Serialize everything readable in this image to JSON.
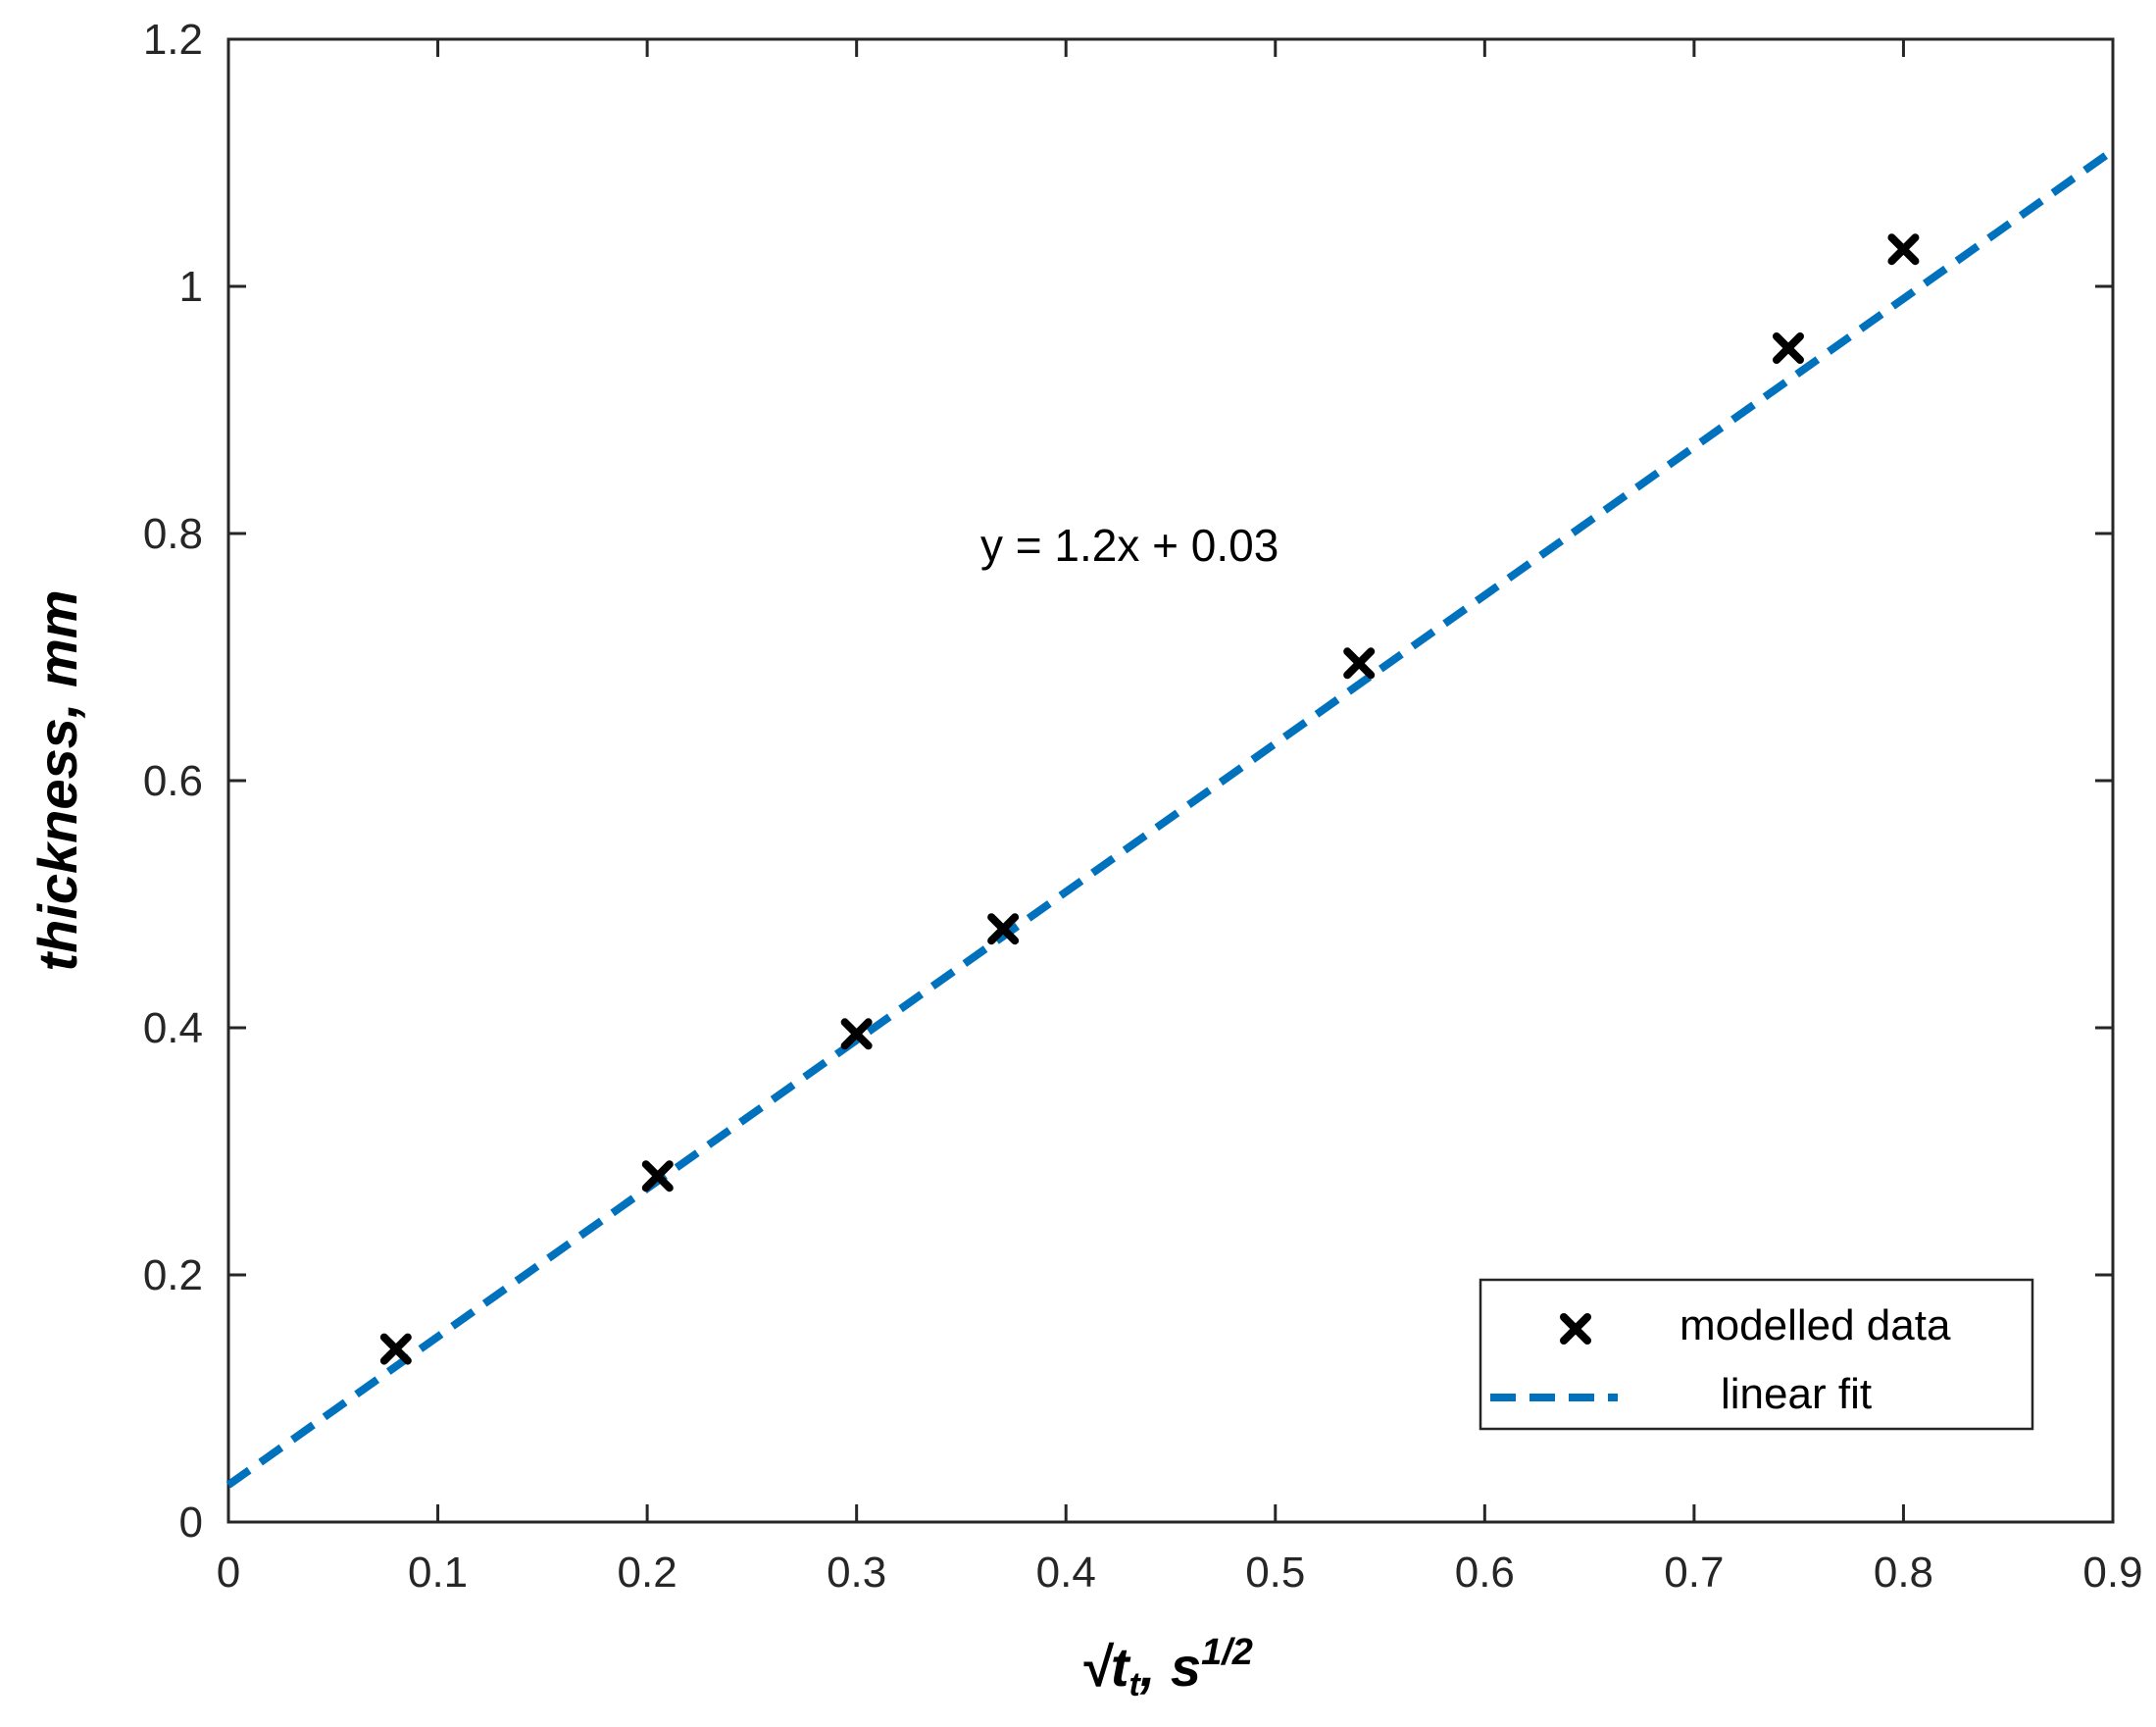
{
  "chart_data": {
    "type": "scatter",
    "x": [
      0.08,
      0.205,
      0.3,
      0.37,
      0.54,
      0.745,
      0.8
    ],
    "series": [
      {
        "name": "modelled data",
        "kind": "scatter",
        "marker": "x",
        "color": "#000000",
        "points": [
          [
            0.08,
            0.14
          ],
          [
            0.205,
            0.28
          ],
          [
            0.3,
            0.395
          ],
          [
            0.37,
            0.48
          ],
          [
            0.54,
            0.695
          ],
          [
            0.745,
            0.95
          ],
          [
            0.8,
            1.03
          ]
        ]
      },
      {
        "name": "linear fit",
        "kind": "line",
        "style": "dashed",
        "color": "#0072BD",
        "slope": 1.2,
        "intercept": 0.03
      }
    ],
    "annotation": "y = 1.2x + 0.03",
    "xlabel_main": "√t",
    "xlabel_sub": "t",
    "xlabel_rest": ", s",
    "xlabel_sup": "1/2",
    "ylabel": "thickness, mm",
    "xlim": [
      0,
      0.9
    ],
    "ylim": [
      0,
      1.2
    ],
    "xticks": [
      "0",
      "0.1",
      "0.2",
      "0.3",
      "0.4",
      "0.5",
      "0.6",
      "0.7",
      "0.8",
      "0.9"
    ],
    "yticks": [
      "0",
      "0.2",
      "0.4",
      "0.6",
      "0.8",
      "1",
      "1.2"
    ],
    "grid": false,
    "legend_position": "bottom-right"
  }
}
